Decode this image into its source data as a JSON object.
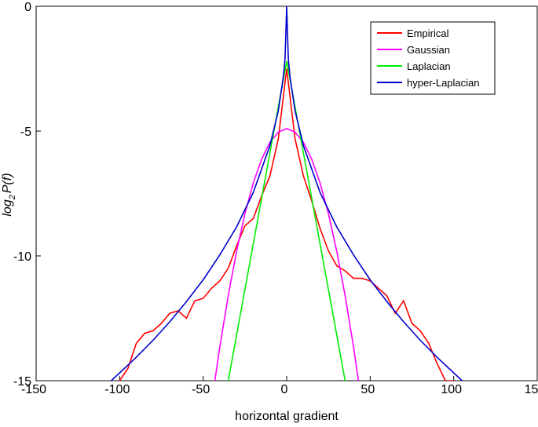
{
  "chart_data": {
    "type": "line",
    "xlabel": "horizontal gradient",
    "ylabel": [
      "log",
      "2",
      "P(f)"
    ],
    "xlim": [
      -150,
      150
    ],
    "xticks": [
      -150,
      -100,
      -50,
      0,
      50,
      100,
      150
    ],
    "ylim": [
      -15,
      0
    ],
    "yticks": [
      -15,
      -10,
      -5,
      0
    ],
    "legend": "upper right",
    "series": [
      {
        "name": "Empirical",
        "color": "#ff0000",
        "x": [
          -100,
          -95,
          -90,
          -85,
          -80,
          -75,
          -70,
          -65,
          -60,
          -55,
          -50,
          -45,
          -40,
          -35,
          -30,
          -25,
          -20,
          -15,
          -10,
          -5,
          0,
          5,
          10,
          15,
          20,
          25,
          30,
          35,
          40,
          45,
          50,
          55,
          60,
          65,
          70,
          75,
          80,
          85,
          90,
          95,
          100
        ],
        "values": [
          -15,
          -14.5,
          -13.5,
          -13.1,
          -13,
          -12.7,
          -12.3,
          -12.2,
          -12.5,
          -11.8,
          -11.7,
          -11.3,
          -11,
          -10.5,
          -9.6,
          -8.8,
          -8.5,
          -7.6,
          -6.8,
          -5.3,
          -2.5,
          -5.3,
          -6.8,
          -7.8,
          -8.9,
          -9.8,
          -10.4,
          -10.6,
          -10.9,
          -10.9,
          -11,
          -11.3,
          -11.6,
          -12.3,
          -11.8,
          -12.7,
          -13,
          -13.5,
          -14.3,
          -15,
          -15
        ]
      },
      {
        "name": "Gaussian",
        "color": "#ff00ff",
        "x": [
          -43,
          -40,
          -35,
          -30,
          -25,
          -20,
          -15,
          -10,
          -5,
          0,
          5,
          10,
          15,
          20,
          25,
          30,
          35,
          40,
          43
        ],
        "values": [
          -15,
          -13.64,
          -11.59,
          -9.82,
          -8.31,
          -7.08,
          -6.13,
          -5.45,
          -5.04,
          -4.9,
          -5.04,
          -5.45,
          -6.13,
          -7.08,
          -8.31,
          -9.82,
          -11.59,
          -13.64,
          -15
        ]
      },
      {
        "name": "Laplacian",
        "color": "#00ee00",
        "x": [
          -35,
          0,
          35
        ],
        "values": [
          -15,
          -2.2,
          -15
        ]
      },
      {
        "name": "hyper-Laplacian",
        "color": "#0000cc",
        "x": [
          -105,
          -90,
          -80,
          -70,
          -60,
          -50,
          -40,
          -30,
          -20,
          -10,
          -5,
          -2,
          -1,
          0,
          1,
          2,
          5,
          10,
          20,
          30,
          40,
          50,
          60,
          70,
          80,
          90,
          105
        ],
        "values": [
          -15,
          -14.06,
          -13.38,
          -12.64,
          -11.83,
          -10.96,
          -9.96,
          -8.84,
          -7.46,
          -5.58,
          -4.18,
          -2.84,
          -2.12,
          0,
          -2.12,
          -2.84,
          -4.18,
          -5.58,
          -7.46,
          -8.84,
          -9.96,
          -10.96,
          -11.83,
          -12.64,
          -13.38,
          -14.06,
          -15
        ]
      }
    ]
  }
}
